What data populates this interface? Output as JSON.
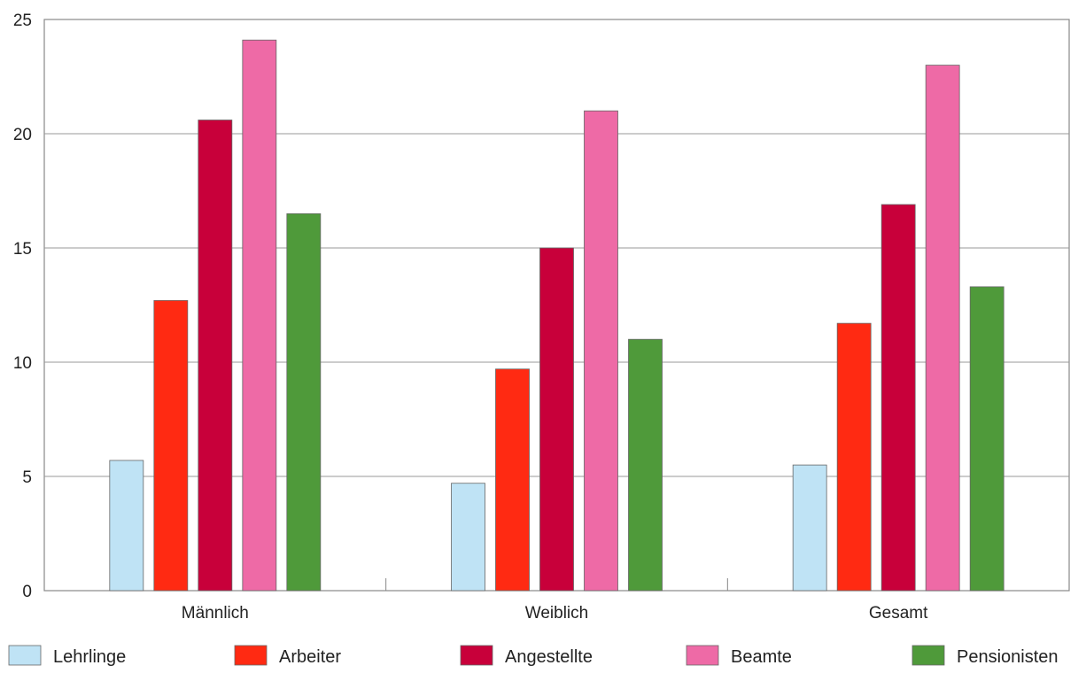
{
  "chart_data": {
    "type": "bar",
    "categories": [
      "Männlich",
      "Weiblich",
      "Gesamt"
    ],
    "series": [
      {
        "name": "Lehrlinge",
        "color": "#bfe3f5",
        "values": [
          5.7,
          4.7,
          5.5
        ]
      },
      {
        "name": "Arbeiter",
        "color": "#ff2a12",
        "values": [
          12.7,
          9.7,
          11.7
        ]
      },
      {
        "name": "Angestellte",
        "color": "#c8003a",
        "values": [
          20.6,
          15.0,
          16.9
        ]
      },
      {
        "name": "Beamte",
        "color": "#ee6aa6",
        "values": [
          24.1,
          21.0,
          23.0
        ]
      },
      {
        "name": "Pensionisten",
        "color": "#4f9a3a",
        "values": [
          16.5,
          11.0,
          13.3
        ]
      }
    ],
    "ylim": [
      0,
      25
    ],
    "yticks": [
      0,
      5,
      10,
      15,
      20,
      25
    ],
    "grid": true,
    "legend": "bottom"
  }
}
